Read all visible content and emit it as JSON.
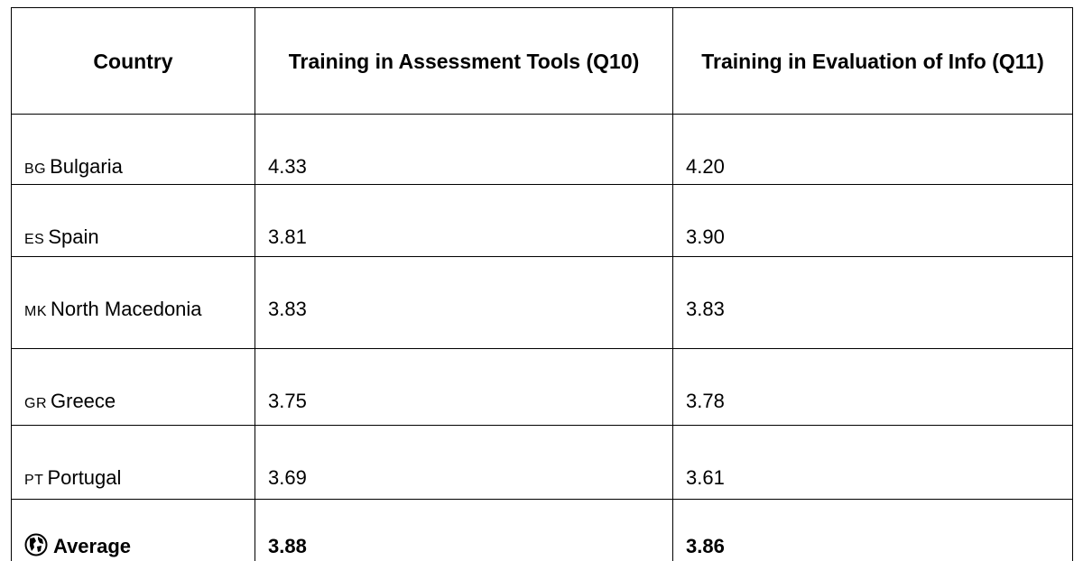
{
  "table": {
    "header": [
      "Country",
      "Training in Assessment Tools (Q10)",
      "Training in Evaluation of Info (Q11)"
    ],
    "rows": [
      {
        "country": {
          "code": "BG",
          "name": "Bulgaria"
        },
        "values": [
          "4.33",
          "4.20"
        ]
      },
      {
        "country": {
          "code": "ES",
          "name": "Spain"
        },
        "values": [
          "3.81",
          "3.90"
        ]
      },
      {
        "country": {
          "code": "MK",
          "name": "North Macedonia"
        },
        "values": [
          "3.83",
          "3.83"
        ]
      },
      {
        "country": {
          "code": "GR",
          "name": "Greece"
        },
        "values": [
          "3.75",
          "3.78"
        ]
      },
      {
        "country": {
          "code": "PT",
          "name": "Portugal"
        },
        "values": [
          "3.69",
          "3.61"
        ]
      }
    ],
    "average": {
      "label": "Average",
      "values": [
        "3.88",
        "3.86"
      ]
    }
  }
}
